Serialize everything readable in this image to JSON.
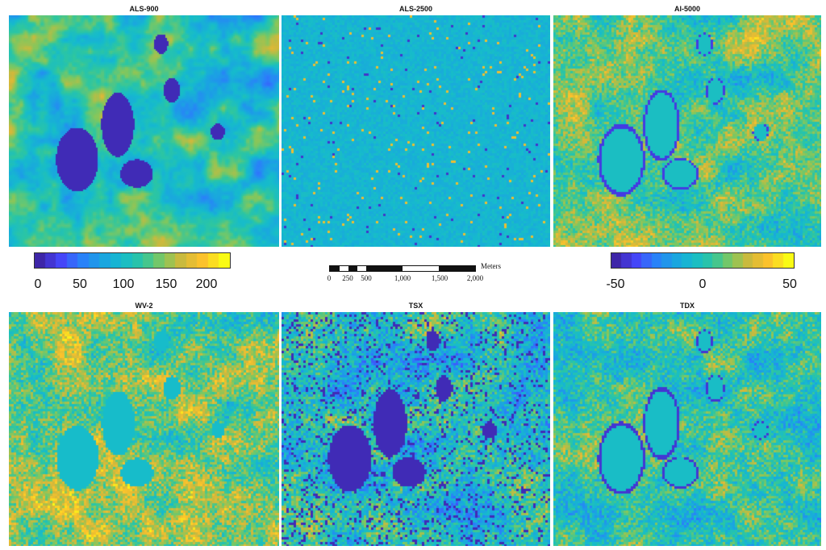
{
  "panels": [
    {
      "title": "ALS-900"
    },
    {
      "title": "ALS-2500"
    },
    {
      "title": "Al-5000"
    },
    {
      "title": "WV-2"
    },
    {
      "title": "TSX"
    },
    {
      "title": "TDX"
    }
  ],
  "colorbar_left": {
    "ticks": [
      "0",
      "50",
      "100",
      "150",
      "200"
    ],
    "range": [
      0,
      230
    ]
  },
  "colorbar_right": {
    "ticks": [
      "-50",
      "0",
      "50"
    ],
    "range": [
      -60,
      60
    ]
  },
  "scalebar": {
    "unit": "Meters",
    "labels": [
      "0",
      "250",
      "500",
      "1,000",
      "1,500",
      "2,000"
    ],
    "label_values": [
      0,
      250,
      500,
      1000,
      1500,
      2000
    ]
  },
  "colormap": [
    "#3e26a8",
    "#4743f8",
    "#2b7efb",
    "#1ba2e3",
    "#16bbcc",
    "#2dc6a1",
    "#81c75e",
    "#d3b83a",
    "#fdc32b",
    "#f9fb15"
  ]
}
